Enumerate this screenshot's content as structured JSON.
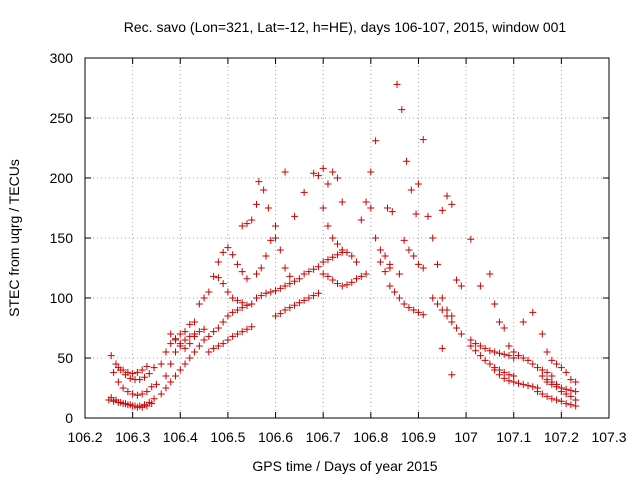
{
  "chart_data": {
    "type": "scatter",
    "title": "Rec. savo (Lon=321, Lat=-12, h=HE), days 106-107, 2015, window 001",
    "xlabel": "GPS time / Days of year 2015",
    "ylabel": "STEC from uqrg / TECUs",
    "xlim": [
      106.2,
      107.3
    ],
    "ylim": [
      0,
      300
    ],
    "xticks": [
      "106.2",
      "106.3",
      "106.4",
      "106.5",
      "106.6",
      "106.7",
      "106.8",
      "106.9",
      "107",
      "107.1",
      "107.2",
      "107.3"
    ],
    "yticks": [
      "0",
      "50",
      "100",
      "150",
      "200",
      "250",
      "300"
    ],
    "grid": true,
    "marker": "+",
    "color": "#cc0000",
    "points": [
      [
        106.255,
        52
      ],
      [
        106.265,
        45
      ],
      [
        106.275,
        40
      ],
      [
        106.285,
        36
      ],
      [
        106.295,
        33
      ],
      [
        106.305,
        32
      ],
      [
        106.315,
        32
      ],
      [
        106.325,
        34
      ],
      [
        106.335,
        37
      ],
      [
        106.345,
        42
      ],
      [
        106.26,
        38
      ],
      [
        106.27,
        30
      ],
      [
        106.28,
        25
      ],
      [
        106.29,
        22
      ],
      [
        106.3,
        20
      ],
      [
        106.31,
        19
      ],
      [
        106.32,
        20
      ],
      [
        106.33,
        22
      ],
      [
        106.34,
        26
      ],
      [
        106.255,
        17
      ],
      [
        106.265,
        15
      ],
      [
        106.275,
        13
      ],
      [
        106.285,
        12
      ],
      [
        106.295,
        11
      ],
      [
        106.305,
        10
      ],
      [
        106.315,
        10
      ],
      [
        106.325,
        11
      ],
      [
        106.335,
        13
      ],
      [
        106.345,
        16
      ],
      [
        106.25,
        15
      ],
      [
        106.26,
        14
      ],
      [
        106.27,
        13
      ],
      [
        106.28,
        12
      ],
      [
        106.29,
        11
      ],
      [
        106.3,
        10
      ],
      [
        106.31,
        9
      ],
      [
        106.32,
        9
      ],
      [
        106.33,
        10
      ],
      [
        106.34,
        12
      ],
      [
        106.27,
        42
      ],
      [
        106.28,
        40
      ],
      [
        106.29,
        38
      ],
      [
        106.3,
        37
      ],
      [
        106.31,
        38
      ],
      [
        106.32,
        40
      ],
      [
        106.33,
        43
      ],
      [
        106.35,
        28
      ],
      [
        106.36,
        45
      ],
      [
        106.37,
        55
      ],
      [
        106.38,
        62
      ],
      [
        106.39,
        66
      ],
      [
        106.4,
        70
      ],
      [
        106.41,
        72
      ],
      [
        106.42,
        78
      ],
      [
        106.43,
        80
      ],
      [
        106.36,
        20
      ],
      [
        106.37,
        25
      ],
      [
        106.38,
        30
      ],
      [
        106.39,
        35
      ],
      [
        106.4,
        40
      ],
      [
        106.41,
        45
      ],
      [
        106.42,
        50
      ],
      [
        106.43,
        55
      ],
      [
        106.44,
        60
      ],
      [
        106.45,
        65
      ],
      [
        106.37,
        35
      ],
      [
        106.38,
        45
      ],
      [
        106.39,
        55
      ],
      [
        106.4,
        62
      ],
      [
        106.41,
        65
      ],
      [
        106.42,
        68
      ],
      [
        106.43,
        70
      ],
      [
        106.44,
        72
      ],
      [
        106.45,
        74
      ],
      [
        106.38,
        70
      ],
      [
        106.39,
        65
      ],
      [
        106.4,
        60
      ],
      [
        106.41,
        58
      ],
      [
        106.42,
        62
      ],
      [
        106.43,
        68
      ],
      [
        106.44,
        95
      ],
      [
        106.45,
        100
      ],
      [
        106.46,
        105
      ],
      [
        106.46,
        68
      ],
      [
        106.47,
        72
      ],
      [
        106.48,
        75
      ],
      [
        106.49,
        80
      ],
      [
        106.5,
        85
      ],
      [
        106.51,
        88
      ],
      [
        106.52,
        90
      ],
      [
        106.53,
        92
      ],
      [
        106.54,
        94
      ],
      [
        106.55,
        95
      ],
      [
        106.46,
        55
      ],
      [
        106.47,
        58
      ],
      [
        106.48,
        60
      ],
      [
        106.49,
        62
      ],
      [
        106.5,
        65
      ],
      [
        106.51,
        68
      ],
      [
        106.52,
        70
      ],
      [
        106.53,
        72
      ],
      [
        106.54,
        74
      ],
      [
        106.55,
        76
      ],
      [
        106.47,
        118
      ],
      [
        106.48,
        117
      ],
      [
        106.49,
        112
      ],
      [
        106.5,
        105
      ],
      [
        106.51,
        100
      ],
      [
        106.52,
        98
      ],
      [
        106.53,
        96
      ],
      [
        106.54,
        94
      ],
      [
        106.48,
        130
      ],
      [
        106.49,
        138
      ],
      [
        106.5,
        142
      ],
      [
        106.51,
        136
      ],
      [
        106.52,
        128
      ],
      [
        106.53,
        122
      ],
      [
        106.54,
        116
      ],
      [
        106.53,
        160
      ],
      [
        106.54,
        162
      ],
      [
        106.55,
        165
      ],
      [
        106.56,
        178
      ],
      [
        106.565,
        197
      ],
      [
        106.575,
        190
      ],
      [
        106.585,
        175
      ],
      [
        106.6,
        160
      ],
      [
        106.56,
        120
      ],
      [
        106.57,
        125
      ],
      [
        106.58,
        135
      ],
      [
        106.59,
        148
      ],
      [
        106.6,
        150
      ],
      [
        106.61,
        140
      ],
      [
        106.62,
        125
      ],
      [
        106.63,
        118
      ],
      [
        106.56,
        100
      ],
      [
        106.57,
        102
      ],
      [
        106.58,
        104
      ],
      [
        106.59,
        105
      ],
      [
        106.6,
        106
      ],
      [
        106.61,
        108
      ],
      [
        106.62,
        110
      ],
      [
        106.63,
        112
      ],
      [
        106.64,
        114
      ],
      [
        106.65,
        116
      ],
      [
        106.6,
        85
      ],
      [
        106.61,
        87
      ],
      [
        106.62,
        90
      ],
      [
        106.63,
        92
      ],
      [
        106.64,
        94
      ],
      [
        106.65,
        96
      ],
      [
        106.66,
        98
      ],
      [
        106.67,
        100
      ],
      [
        106.68,
        102
      ],
      [
        106.69,
        104
      ],
      [
        106.62,
        205
      ],
      [
        106.64,
        168
      ],
      [
        106.66,
        188
      ],
      [
        106.68,
        204
      ],
      [
        106.69,
        202
      ],
      [
        106.7,
        208
      ],
      [
        106.71,
        195
      ],
      [
        106.72,
        205
      ],
      [
        106.73,
        200
      ],
      [
        106.74,
        180
      ],
      [
        106.7,
        175
      ],
      [
        106.71,
        160
      ],
      [
        106.72,
        150
      ],
      [
        106.73,
        145
      ],
      [
        106.74,
        140
      ],
      [
        106.75,
        138
      ],
      [
        106.76,
        135
      ],
      [
        106.77,
        130
      ],
      [
        106.7,
        120
      ],
      [
        106.71,
        118
      ],
      [
        106.72,
        115
      ],
      [
        106.73,
        112
      ],
      [
        106.74,
        110
      ],
      [
        106.75,
        111
      ],
      [
        106.76,
        113
      ],
      [
        106.77,
        116
      ],
      [
        106.78,
        118
      ],
      [
        106.79,
        120
      ],
      [
        106.66,
        120
      ],
      [
        106.67,
        122
      ],
      [
        106.68,
        124
      ],
      [
        106.69,
        126
      ],
      [
        106.7,
        130
      ],
      [
        106.71,
        132
      ],
      [
        106.72,
        134
      ],
      [
        106.73,
        136
      ],
      [
        106.74,
        138
      ],
      [
        106.78,
        165
      ],
      [
        106.79,
        180
      ],
      [
        106.8,
        175
      ],
      [
        106.81,
        150
      ],
      [
        106.82,
        140
      ],
      [
        106.83,
        135
      ],
      [
        106.84,
        128
      ],
      [
        106.81,
        231
      ],
      [
        106.835,
        175
      ],
      [
        106.845,
        172
      ],
      [
        106.855,
        278
      ],
      [
        106.865,
        257
      ],
      [
        106.875,
        214
      ],
      [
        106.885,
        190
      ],
      [
        106.895,
        170
      ],
      [
        106.8,
        205
      ],
      [
        106.82,
        130
      ],
      [
        106.84,
        125
      ],
      [
        106.86,
        120
      ],
      [
        106.87,
        148
      ],
      [
        106.88,
        140
      ],
      [
        106.89,
        135
      ],
      [
        106.9,
        128
      ],
      [
        106.91,
        125
      ],
      [
        106.83,
        122
      ],
      [
        106.84,
        110
      ],
      [
        106.85,
        105
      ],
      [
        106.86,
        100
      ],
      [
        106.87,
        95
      ],
      [
        106.88,
        92
      ],
      [
        106.89,
        90
      ],
      [
        106.9,
        88
      ],
      [
        106.91,
        86
      ],
      [
        106.9,
        195
      ],
      [
        106.91,
        232
      ],
      [
        106.92,
        168
      ],
      [
        106.93,
        150
      ],
      [
        106.94,
        128
      ],
      [
        106.95,
        100
      ],
      [
        106.96,
        90
      ],
      [
        106.97,
        85
      ],
      [
        106.93,
        100
      ],
      [
        106.94,
        95
      ],
      [
        106.95,
        90
      ],
      [
        106.96,
        85
      ],
      [
        106.97,
        80
      ],
      [
        106.98,
        75
      ],
      [
        106.99,
        70
      ],
      [
        106.95,
        173
      ],
      [
        106.96,
        185
      ],
      [
        106.97,
        178
      ],
      [
        106.98,
        115
      ],
      [
        106.99,
        110
      ],
      [
        106.97,
        36
      ],
      [
        106.95,
        58
      ],
      [
        107.01,
        149
      ],
      [
        107.03,
        110
      ],
      [
        107.05,
        120
      ],
      [
        107.06,
        95
      ],
      [
        107.07,
        80
      ],
      [
        107.08,
        75
      ],
      [
        107.01,
        65
      ],
      [
        107.02,
        62
      ],
      [
        107.03,
        60
      ],
      [
        107.04,
        58
      ],
      [
        107.05,
        56
      ],
      [
        107.06,
        55
      ],
      [
        107.07,
        54
      ],
      [
        107.08,
        53
      ],
      [
        107.09,
        52
      ],
      [
        107.1,
        50
      ],
      [
        107.01,
        60
      ],
      [
        107.02,
        56
      ],
      [
        107.03,
        52
      ],
      [
        107.04,
        48
      ],
      [
        107.05,
        45
      ],
      [
        107.06,
        42
      ],
      [
        107.07,
        40
      ],
      [
        107.08,
        38
      ],
      [
        107.09,
        36
      ],
      [
        107.1,
        35
      ],
      [
        107.06,
        40
      ],
      [
        107.07,
        36
      ],
      [
        107.08,
        33
      ],
      [
        107.09,
        31
      ],
      [
        107.1,
        30
      ],
      [
        107.11,
        29
      ],
      [
        107.12,
        28
      ],
      [
        107.13,
        27
      ],
      [
        107.14,
        26
      ],
      [
        107.15,
        25
      ],
      [
        107.09,
        60
      ],
      [
        107.1,
        55
      ],
      [
        107.11,
        52
      ],
      [
        107.12,
        50
      ],
      [
        107.13,
        48
      ],
      [
        107.14,
        45
      ],
      [
        107.15,
        42
      ],
      [
        107.16,
        40
      ],
      [
        107.17,
        38
      ],
      [
        107.18,
        35
      ],
      [
        107.12,
        80
      ],
      [
        107.14,
        88
      ],
      [
        107.16,
        70
      ],
      [
        107.17,
        55
      ],
      [
        107.18,
        48
      ],
      [
        107.19,
        45
      ],
      [
        107.2,
        42
      ],
      [
        107.21,
        38
      ],
      [
        107.22,
        32
      ],
      [
        107.23,
        30
      ],
      [
        107.15,
        22
      ],
      [
        107.16,
        20
      ],
      [
        107.17,
        18
      ],
      [
        107.18,
        16
      ],
      [
        107.19,
        15
      ],
      [
        107.2,
        14
      ],
      [
        107.21,
        12
      ],
      [
        107.22,
        11
      ],
      [
        107.23,
        10
      ],
      [
        107.17,
        30
      ],
      [
        107.18,
        28
      ],
      [
        107.19,
        26
      ],
      [
        107.2,
        25
      ],
      [
        107.21,
        24
      ],
      [
        107.22,
        23
      ],
      [
        107.23,
        22
      ],
      [
        107.16,
        35
      ],
      [
        107.17,
        32
      ],
      [
        107.18,
        30
      ],
      [
        107.19,
        28
      ],
      [
        107.2,
        22
      ],
      [
        107.21,
        20
      ],
      [
        107.22,
        18
      ],
      [
        107.23,
        15
      ]
    ]
  }
}
